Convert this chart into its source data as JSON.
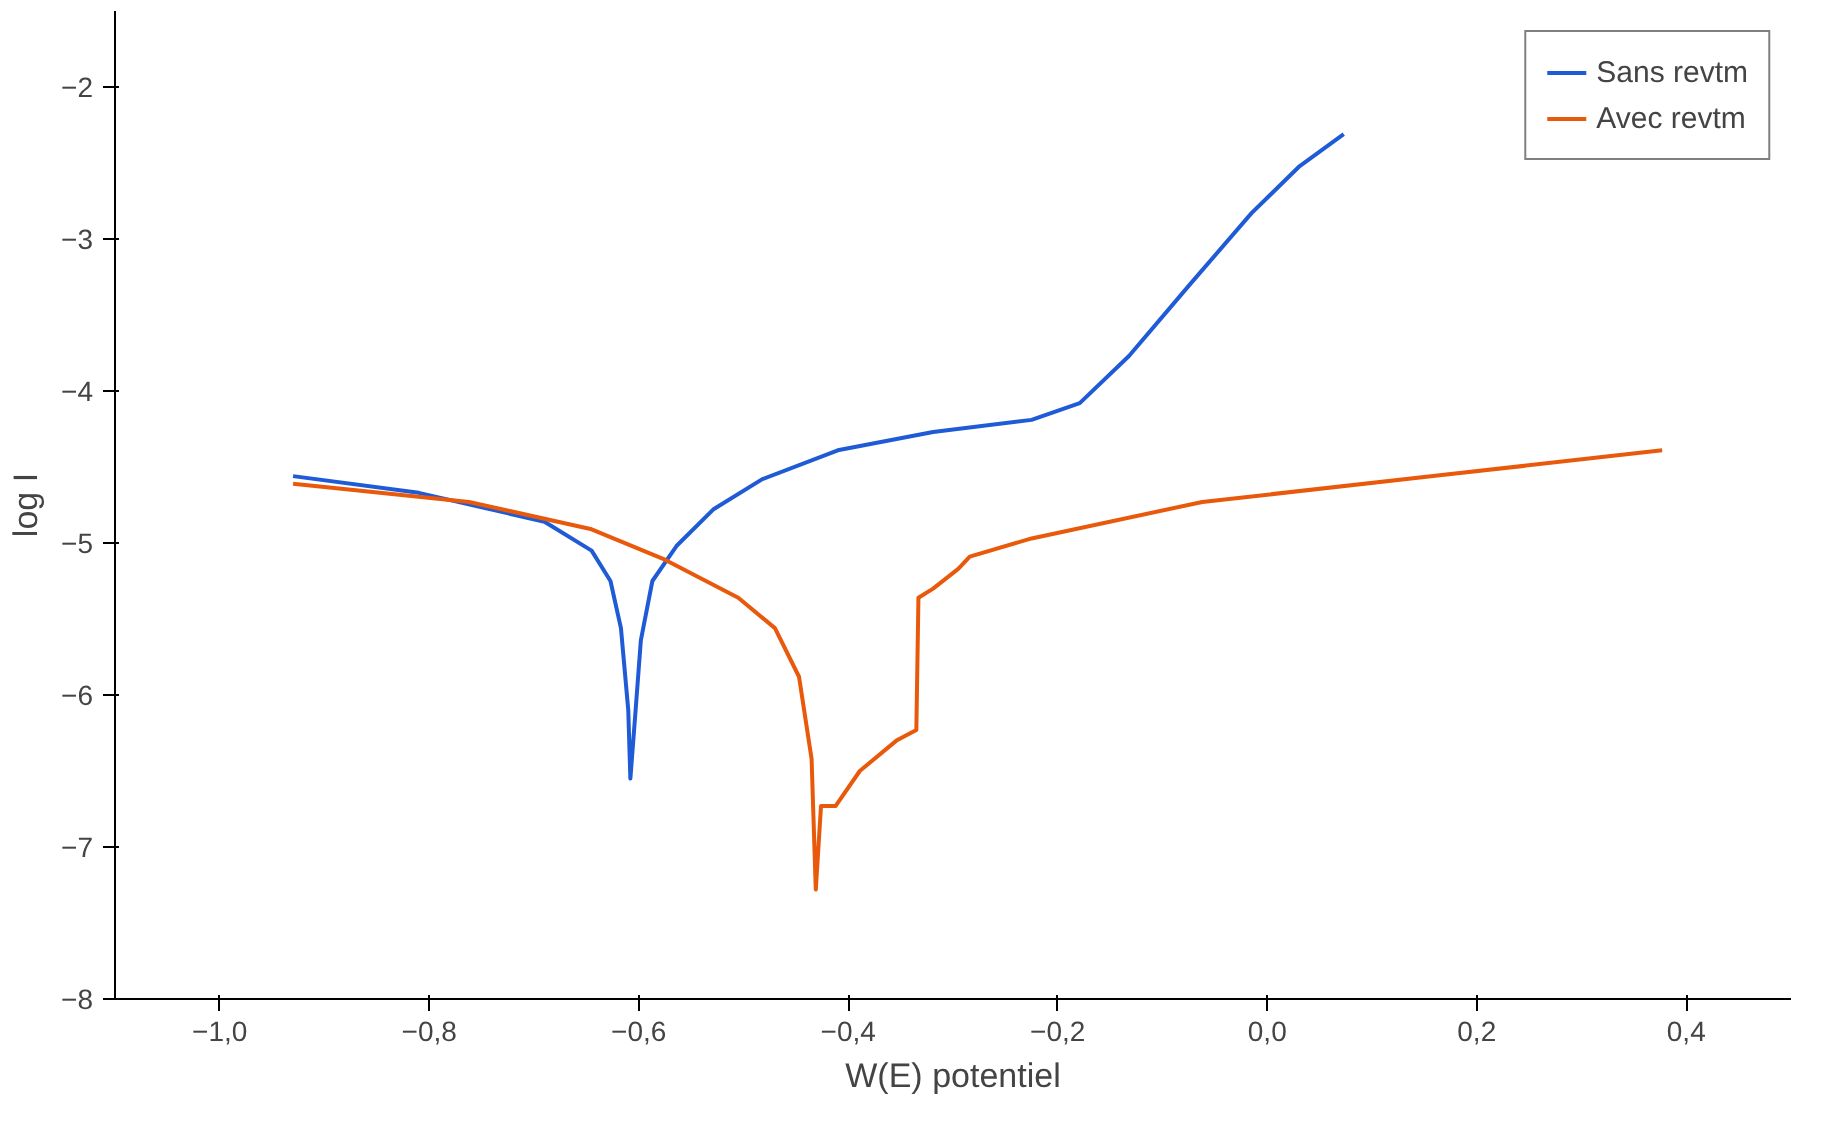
{
  "chart_data": {
    "type": "line",
    "xlabel": "W(E) potentiel",
    "ylabel": "log I",
    "xlim": [
      -1.1,
      0.5
    ],
    "ylim": [
      -8,
      -1.5
    ],
    "xticks": [
      {
        "value": -1.0,
        "label": "−1,0"
      },
      {
        "value": -0.8,
        "label": "−0,8"
      },
      {
        "value": -0.6,
        "label": "−0,6"
      },
      {
        "value": -0.4,
        "label": "−0,4"
      },
      {
        "value": -0.2,
        "label": "−0,2"
      },
      {
        "value": 0.0,
        "label": "0,0"
      },
      {
        "value": 0.2,
        "label": "0,2"
      },
      {
        "value": 0.4,
        "label": "0,4"
      }
    ],
    "yticks": [
      {
        "value": -8,
        "label": "−8"
      },
      {
        "value": -7,
        "label": "−7"
      },
      {
        "value": -6,
        "label": "−6"
      },
      {
        "value": -5,
        "label": "−5"
      },
      {
        "value": -4,
        "label": "−4"
      },
      {
        "value": -3,
        "label": "−3"
      },
      {
        "value": -2,
        "label": "−2"
      }
    ],
    "grid": false,
    "legend": "top right",
    "marker": "none",
    "line_style": "solid",
    "series": [
      {
        "name": "Sans revtm",
        "color": "#1f5bd6",
        "x": [
          -0.93,
          -0.81,
          -0.69,
          -0.645,
          -0.627,
          -0.617,
          -0.61,
          -0.608,
          -0.603,
          -0.598,
          -0.587,
          -0.564,
          -0.529,
          -0.482,
          -0.41,
          -0.319,
          -0.225,
          -0.179,
          -0.132,
          -0.074,
          -0.015,
          0.031,
          0.073
        ],
        "values": [
          -4.56,
          -4.67,
          -4.86,
          -5.05,
          -5.25,
          -5.56,
          -6.1,
          -6.55,
          -6.1,
          -5.64,
          -5.25,
          -5.02,
          -4.78,
          -4.58,
          -4.39,
          -4.27,
          -4.19,
          -4.08,
          -3.77,
          -3.3,
          -2.83,
          -2.52,
          -2.31
        ]
      },
      {
        "name": "Avec revtm",
        "color": "#e8590c",
        "x": [
          -0.93,
          -0.762,
          -0.645,
          -0.575,
          -0.505,
          -0.47,
          -0.447,
          -0.435,
          -0.431,
          -0.426,
          -0.412,
          -0.389,
          -0.354,
          -0.335,
          -0.333,
          -0.319,
          -0.295,
          -0.284,
          -0.225,
          -0.062,
          0.171,
          0.377
        ],
        "values": [
          -4.61,
          -4.73,
          -4.91,
          -5.11,
          -5.36,
          -5.56,
          -5.88,
          -6.42,
          -7.28,
          -6.73,
          -6.73,
          -6.5,
          -6.3,
          -6.23,
          -5.36,
          -5.3,
          -5.17,
          -5.09,
          -4.97,
          -4.73,
          -4.55,
          -4.39
        ]
      }
    ]
  }
}
